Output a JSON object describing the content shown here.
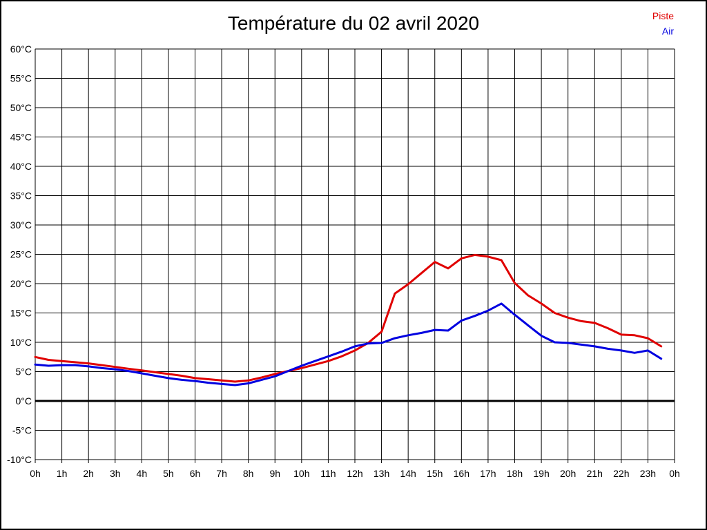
{
  "header": {
    "title": "Température du 02 avril 2020"
  },
  "legend": {
    "position": "top-right",
    "items": [
      {
        "label": "Piste",
        "color": "#e00000"
      },
      {
        "label": "Air",
        "color": "#0000e0"
      }
    ]
  },
  "chart_data": {
    "type": "line",
    "title": "Température du 02 avril 2020",
    "xlabel": "",
    "ylabel": "",
    "xlim": [
      0,
      24
    ],
    "ylim": [
      -10,
      60
    ],
    "y_step": 5,
    "grid": true,
    "zero_line_bold": true,
    "legend_position": "top-right",
    "x_tick_labels": [
      "0h",
      "1h",
      "2h",
      "3h",
      "4h",
      "5h",
      "6h",
      "7h",
      "8h",
      "9h",
      "10h",
      "11h",
      "12h",
      "13h",
      "14h",
      "15h",
      "16h",
      "17h",
      "18h",
      "19h",
      "20h",
      "21h",
      "22h",
      "23h",
      "0h"
    ],
    "y_tick_labels": [
      "60°C",
      "55°C",
      "50°C",
      "45°C",
      "40°C",
      "35°C",
      "30°C",
      "25°C",
      "20°C",
      "15°C",
      "10°C",
      "5°C",
      "0°C",
      "-5°C",
      "-10°C"
    ],
    "x": [
      0,
      0.5,
      1,
      1.5,
      2,
      2.5,
      3,
      3.5,
      4,
      4.5,
      5,
      5.5,
      6,
      6.5,
      7,
      7.5,
      8,
      8.5,
      9,
      9.5,
      10,
      10.5,
      11,
      11.5,
      12,
      12.5,
      13,
      13.5,
      14,
      14.5,
      15,
      15.5,
      16,
      16.5,
      17,
      17.5,
      18,
      18.5,
      19,
      19.5,
      20,
      20.5,
      21,
      21.5,
      22,
      22.5,
      23,
      23.5
    ],
    "series": [
      {
        "name": "Piste",
        "color": "#e00000",
        "values": [
          7.5,
          7.0,
          6.8,
          6.6,
          6.4,
          6.1,
          5.8,
          5.5,
          5.2,
          4.9,
          4.6,
          4.3,
          3.9,
          3.7,
          3.5,
          3.3,
          3.5,
          4.0,
          4.6,
          5.1,
          5.6,
          6.2,
          6.8,
          7.6,
          8.6,
          9.9,
          11.8,
          18.3,
          19.9,
          21.8,
          23.7,
          22.6,
          24.3,
          24.9,
          24.6,
          24.0,
          20.1,
          18.0,
          16.6,
          15.0,
          14.2,
          13.6,
          13.3,
          12.4,
          11.3,
          11.2,
          10.7,
          9.3
        ]
      },
      {
        "name": "Air",
        "color": "#0000e0",
        "values": [
          6.2,
          6.0,
          6.1,
          6.1,
          5.9,
          5.6,
          5.4,
          5.1,
          4.7,
          4.3,
          3.9,
          3.6,
          3.4,
          3.1,
          2.9,
          2.7,
          3.0,
          3.6,
          4.2,
          5.1,
          6.0,
          6.8,
          7.6,
          8.4,
          9.3,
          9.8,
          9.9,
          10.7,
          11.2,
          11.6,
          12.1,
          12.0,
          13.7,
          14.5,
          15.4,
          16.6,
          14.7,
          12.9,
          11.1,
          10.0,
          9.9,
          9.6,
          9.3,
          8.9,
          8.6,
          8.2,
          8.6,
          7.2
        ]
      }
    ]
  }
}
